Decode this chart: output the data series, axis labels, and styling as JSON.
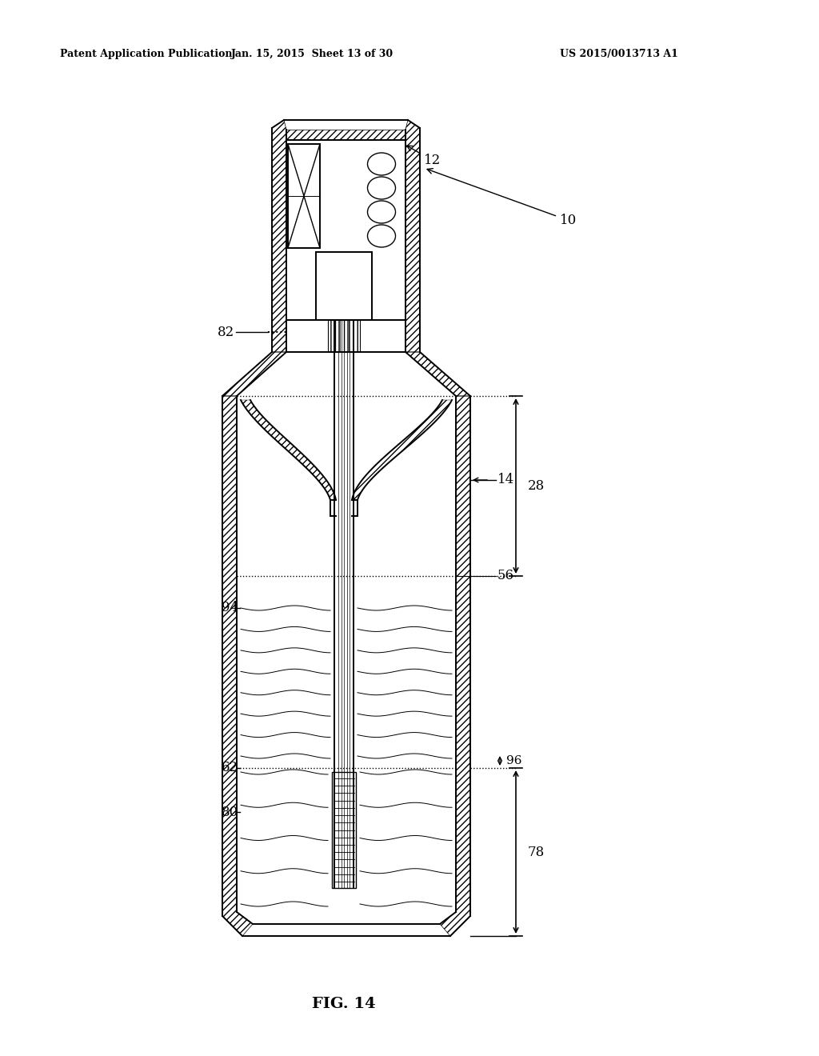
{
  "header_left": "Patent Application Publication",
  "header_mid": "Jan. 15, 2015  Sheet 13 of 30",
  "header_right": "US 2015/0013713 A1",
  "figure_label": "FIG. 14",
  "bg_color": "#ffffff",
  "lc": "#000000"
}
